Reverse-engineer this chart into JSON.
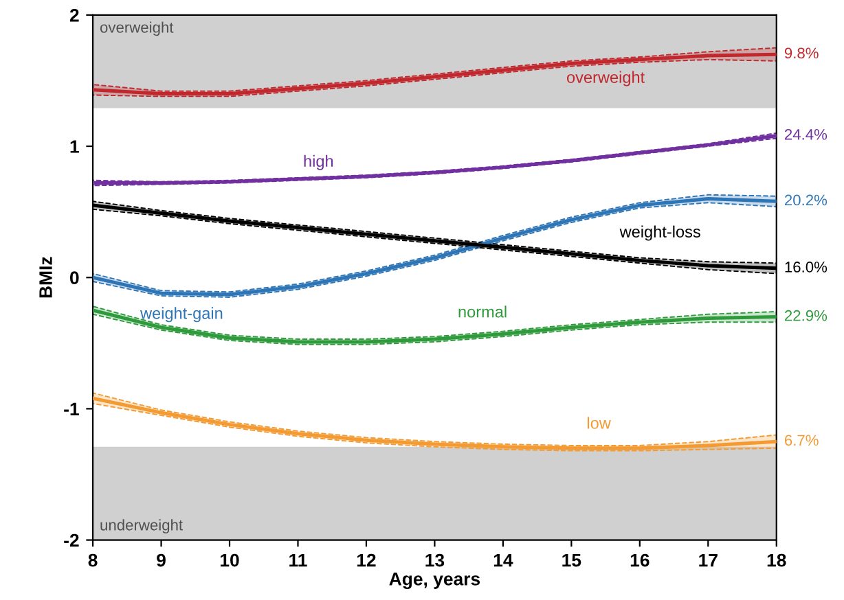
{
  "chart_data": {
    "type": "line",
    "xlabel": "Age, years",
    "ylabel": "BMIz",
    "x": [
      8,
      9,
      10,
      11,
      12,
      13,
      14,
      15,
      16,
      17,
      18
    ],
    "xlim": [
      8,
      18
    ],
    "xticks": [
      8,
      9,
      10,
      11,
      12,
      13,
      14,
      15,
      16,
      17,
      18
    ],
    "ylim": [
      -2,
      2
    ],
    "yticks": [
      -2,
      -1,
      0,
      1,
      2
    ],
    "grid": false,
    "legend": false,
    "marker": "none",
    "line_style": "solid",
    "series": [
      {
        "name": "overweight",
        "color": "#c0282d",
        "values": [
          1.43,
          1.4,
          1.4,
          1.44,
          1.48,
          1.53,
          1.58,
          1.63,
          1.66,
          1.69,
          1.7
        ],
        "lower": [
          1.39,
          1.38,
          1.38,
          1.42,
          1.46,
          1.51,
          1.56,
          1.61,
          1.64,
          1.66,
          1.65
        ],
        "upper": [
          1.47,
          1.42,
          1.42,
          1.46,
          1.5,
          1.55,
          1.6,
          1.65,
          1.68,
          1.72,
          1.75
        ]
      },
      {
        "name": "high",
        "color": "#7030a0",
        "values": [
          0.72,
          0.72,
          0.73,
          0.75,
          0.77,
          0.8,
          0.84,
          0.89,
          0.95,
          1.01,
          1.08
        ],
        "lower": [
          0.7,
          0.71,
          0.72,
          0.74,
          0.76,
          0.79,
          0.83,
          0.88,
          0.94,
          1.0,
          1.06
        ],
        "upper": [
          0.74,
          0.73,
          0.74,
          0.76,
          0.78,
          0.81,
          0.85,
          0.9,
          0.96,
          1.02,
          1.1
        ]
      },
      {
        "name": "weight-gain",
        "color": "#2e75b6",
        "values": [
          0.0,
          -0.12,
          -0.13,
          -0.07,
          0.03,
          0.15,
          0.3,
          0.44,
          0.55,
          0.6,
          0.58
        ],
        "lower": [
          -0.03,
          -0.14,
          -0.15,
          -0.09,
          0.01,
          0.13,
          0.28,
          0.42,
          0.53,
          0.57,
          0.54
        ],
        "upper": [
          0.03,
          -0.1,
          -0.11,
          -0.05,
          0.05,
          0.17,
          0.32,
          0.46,
          0.57,
          0.63,
          0.62
        ]
      },
      {
        "name": "weight-loss",
        "color": "#000000",
        "values": [
          0.55,
          0.49,
          0.43,
          0.38,
          0.33,
          0.28,
          0.23,
          0.18,
          0.13,
          0.09,
          0.07
        ],
        "lower": [
          0.52,
          0.47,
          0.41,
          0.36,
          0.31,
          0.26,
          0.21,
          0.16,
          0.11,
          0.06,
          0.03
        ],
        "upper": [
          0.58,
          0.51,
          0.45,
          0.4,
          0.35,
          0.3,
          0.25,
          0.2,
          0.15,
          0.12,
          0.11
        ]
      },
      {
        "name": "normal",
        "color": "#2e9a3c",
        "values": [
          -0.25,
          -0.38,
          -0.46,
          -0.49,
          -0.49,
          -0.47,
          -0.43,
          -0.38,
          -0.34,
          -0.31,
          -0.3
        ],
        "lower": [
          -0.28,
          -0.4,
          -0.48,
          -0.51,
          -0.51,
          -0.49,
          -0.45,
          -0.4,
          -0.36,
          -0.34,
          -0.34
        ],
        "upper": [
          -0.22,
          -0.36,
          -0.44,
          -0.47,
          -0.47,
          -0.45,
          -0.41,
          -0.36,
          -0.32,
          -0.28,
          -0.26
        ]
      },
      {
        "name": "low",
        "color": "#f39a32",
        "values": [
          -0.92,
          -1.03,
          -1.12,
          -1.19,
          -1.24,
          -1.27,
          -1.29,
          -1.3,
          -1.3,
          -1.28,
          -1.25
        ],
        "lower": [
          -0.96,
          -1.05,
          -1.14,
          -1.21,
          -1.26,
          -1.29,
          -1.31,
          -1.32,
          -1.32,
          -1.31,
          -1.3
        ],
        "upper": [
          -0.88,
          -1.01,
          -1.1,
          -1.17,
          -1.22,
          -1.25,
          -1.27,
          -1.28,
          -1.28,
          -1.25,
          -1.2
        ]
      }
    ],
    "bands": [
      {
        "axis": "y",
        "from": 1.29,
        "to": 2,
        "label": "overweight",
        "color": "#d0d0d0"
      },
      {
        "axis": "y",
        "from": -2,
        "to": -1.29,
        "label": "underweight",
        "color": "#d0d0d0"
      }
    ],
    "annotations": [
      "9.8%",
      "24.4%",
      "20.2%",
      "16.0%",
      "22.9%",
      "6.7%"
    ]
  }
}
